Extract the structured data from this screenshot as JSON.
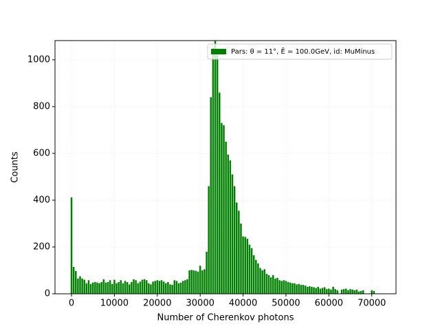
{
  "chart_data": {
    "type": "histogram",
    "x_label": "Number of Cherenkov photons",
    "y_label": "Counts",
    "series": [
      {
        "name": "Pars: θ = 11°, Ē = 100.0GeV, id: MuMinus",
        "color": "#008000",
        "values": [
          412,
          115,
          97,
          65,
          75,
          65,
          60,
          45,
          58,
          42,
          48,
          50,
          48,
          45,
          50,
          62,
          48,
          50,
          58,
          42,
          60,
          45,
          50,
          58,
          45,
          55,
          50,
          40,
          50,
          62,
          58,
          45,
          52,
          60,
          62,
          58,
          45,
          40,
          52,
          55,
          58,
          55,
          58,
          52,
          45,
          50,
          40,
          38,
          58,
          55,
          45,
          48,
          55,
          58,
          62,
          100,
          102,
          100,
          98,
          95,
          120,
          100,
          105,
          180,
          460,
          840,
          1050,
          1080,
          1050,
          860,
          730,
          720,
          650,
          595,
          570,
          510,
          460,
          390,
          355,
          300,
          245,
          243,
          235,
          210,
          195,
          165,
          145,
          130,
          110,
          100,
          105,
          85,
          80,
          70,
          80,
          65,
          68,
          58,
          55,
          58,
          55,
          50,
          48,
          45,
          45,
          40,
          42,
          38,
          38,
          35,
          30,
          32,
          30,
          28,
          25,
          30,
          22,
          25,
          28,
          20,
          22,
          18,
          30,
          20,
          15,
          0,
          18,
          20,
          22,
          15,
          20,
          18,
          15,
          18,
          10,
          12,
          15,
          0,
          0,
          0,
          15,
          12
        ]
      }
    ],
    "bins": [
      -250,
      250,
      750,
      1250,
      1750,
      2250,
      2750,
      3250,
      3750,
      4250,
      4750,
      5250,
      5750,
      6250,
      6750,
      7250,
      7750,
      8250,
      8750,
      9250,
      9750,
      10250,
      10750,
      11250,
      11750,
      12250,
      12750,
      13250,
      13750,
      14250,
      14750,
      15250,
      15750,
      16250,
      16750,
      17250,
      17750,
      18250,
      18750,
      19250,
      19750,
      20250,
      20750,
      21250,
      21750,
      22250,
      22750,
      23250,
      23750,
      24250,
      24750,
      25250,
      25750,
      26250,
      26750,
      27250,
      27750,
      28250,
      28750,
      29250,
      29750,
      30250,
      30750,
      31250,
      31750,
      32250,
      32750,
      33250,
      33750,
      34250,
      34750,
      35250,
      35750,
      36250,
      36750,
      37250,
      37750,
      38250,
      38750,
      39250,
      39750,
      40250,
      40750,
      41250,
      41750,
      42250,
      42750,
      43250,
      43750,
      44250,
      44750,
      45250,
      45750,
      46250,
      46750,
      47250,
      47750,
      48250,
      48750,
      49250,
      49750,
      50250,
      50750,
      51250,
      51750,
      52250,
      52750,
      53250,
      53750,
      54250,
      54750,
      55250,
      55750,
      56250,
      56750,
      57250,
      57750,
      58250,
      58750,
      59250,
      59750,
      60250,
      60750,
      61250,
      61750,
      62250,
      62750,
      63250,
      63750,
      64250,
      64750,
      65250,
      65750,
      66250,
      66750,
      67250,
      67750,
      68250,
      68750,
      69250,
      69750,
      70250,
      70750
    ],
    "xlim": [
      -3850,
      75650
    ],
    "ylim": [
      0,
      1082
    ],
    "xticks": [
      0,
      10000,
      20000,
      30000,
      40000,
      50000,
      60000,
      70000
    ],
    "yticks": [
      0,
      200,
      400,
      600,
      800,
      1000
    ],
    "grid": true,
    "legend": "upper right"
  }
}
